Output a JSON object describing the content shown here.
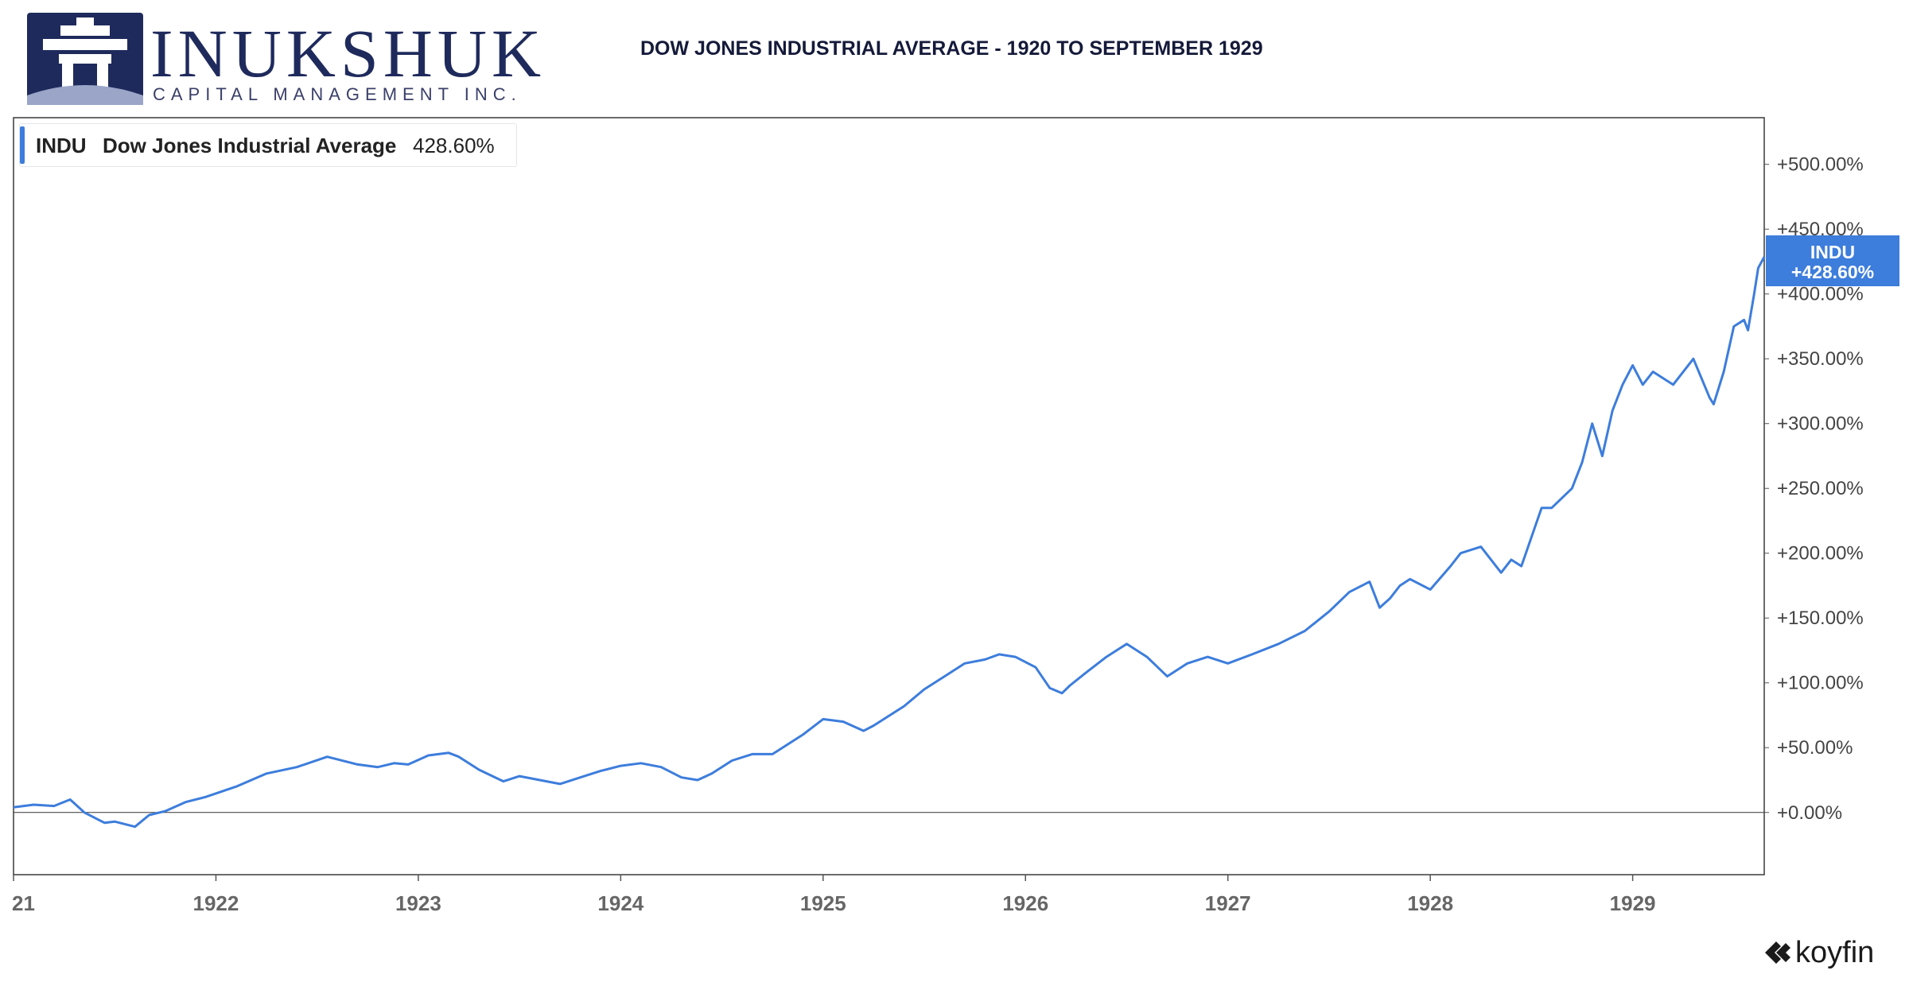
{
  "logo": {
    "name": "INUKSHUK",
    "subtitle": "CAPITAL MANAGEMENT INC."
  },
  "title": "DOW JONES INDUSTRIAL AVERAGE - 1920 TO SEPTEMBER 1929",
  "legend": {
    "ticker": "INDU",
    "name": "Dow Jones Industrial Average",
    "value": "428.60%"
  },
  "price_tag": {
    "ticker": "INDU",
    "value": "+428.60%"
  },
  "brand": "koyfin",
  "colors": {
    "series": "#3d7ddc",
    "logo_navy": "#1f2a5c",
    "title": "#151a3a"
  },
  "chart_data": {
    "type": "line",
    "title": "DOW JONES INDUSTRIAL AVERAGE - 1920 TO SEPTEMBER 1929",
    "xlabel": "",
    "ylabel": "",
    "x_ticks": [
      "21",
      "1922",
      "1923",
      "1924",
      "1925",
      "1926",
      "1927",
      "1928",
      "1929"
    ],
    "y_ticks": [
      "+0.00%",
      "+50.00%",
      "+100.00%",
      "+150.00%",
      "+200.00%",
      "+250.00%",
      "+300.00%",
      "+350.00%",
      "+400.00%",
      "+450.00%",
      "+500.00%"
    ],
    "xlim": [
      1921.0,
      1929.65
    ],
    "ylim": [
      -48,
      536
    ],
    "y_axis_position": "right",
    "baseline": 0,
    "grid": false,
    "legend_position": "top-left",
    "series": [
      {
        "name": "INDU",
        "x": [
          1921.0,
          1921.1,
          1921.2,
          1921.28,
          1921.35,
          1921.45,
          1921.5,
          1921.6,
          1921.67,
          1921.75,
          1921.85,
          1921.95,
          1922.1,
          1922.25,
          1922.4,
          1922.55,
          1922.7,
          1922.8,
          1922.88,
          1922.95,
          1923.05,
          1923.15,
          1923.2,
          1923.3,
          1923.42,
          1923.5,
          1923.6,
          1923.7,
          1923.82,
          1923.9,
          1924.0,
          1924.1,
          1924.2,
          1924.3,
          1924.38,
          1924.45,
          1924.55,
          1924.65,
          1924.75,
          1924.8,
          1924.9,
          1925.0,
          1925.1,
          1925.2,
          1925.25,
          1925.3,
          1925.4,
          1925.5,
          1925.6,
          1925.7,
          1925.8,
          1925.87,
          1925.95,
          1926.05,
          1926.12,
          1926.18,
          1926.22,
          1926.3,
          1926.4,
          1926.5,
          1926.6,
          1926.7,
          1926.8,
          1926.9,
          1927.0,
          1927.12,
          1927.25,
          1927.38,
          1927.5,
          1927.6,
          1927.7,
          1927.75,
          1927.8,
          1927.85,
          1927.9,
          1928.0,
          1928.1,
          1928.15,
          1928.25,
          1928.35,
          1928.4,
          1928.45,
          1928.55,
          1928.6,
          1928.7,
          1928.75,
          1928.8,
          1928.85,
          1928.9,
          1928.95,
          1929.0,
          1929.05,
          1929.1,
          1929.2,
          1929.3,
          1929.38,
          1929.4,
          1929.45,
          1929.5,
          1929.55,
          1929.57,
          1929.6,
          1929.62,
          1929.65
        ],
        "y": [
          4,
          6,
          5,
          10,
          0,
          -8,
          -7,
          -11,
          -2,
          1,
          8,
          12,
          20,
          30,
          35,
          43,
          37,
          35,
          38,
          37,
          44,
          46,
          43,
          33,
          24,
          28,
          25,
          22,
          28,
          32,
          36,
          38,
          35,
          27,
          25,
          30,
          40,
          45,
          45,
          50,
          60,
          72,
          70,
          63,
          67,
          72,
          82,
          95,
          105,
          115,
          118,
          122,
          120,
          112,
          96,
          92,
          98,
          108,
          120,
          130,
          120,
          105,
          115,
          120,
          115,
          122,
          130,
          140,
          155,
          170,
          178,
          158,
          165,
          175,
          180,
          172,
          190,
          200,
          205,
          185,
          195,
          190,
          235,
          235,
          250,
          270,
          300,
          275,
          310,
          330,
          345,
          330,
          340,
          330,
          350,
          320,
          315,
          340,
          375,
          380,
          372,
          400,
          420,
          428.6
        ]
      }
    ],
    "last_value_label": "+428.60%"
  }
}
